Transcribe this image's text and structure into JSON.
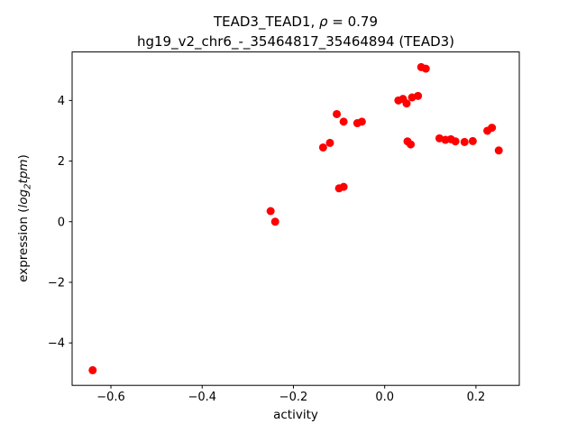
{
  "figure": {
    "background": "#ffffff",
    "title_line1_parts": {
      "prefix": "TEAD3_TEAD1, ",
      "rho": "ρ",
      "rest": " = 0.79"
    },
    "title_line2": "hg19_v2_chr6_-_35464817_35464894 (TEAD3)",
    "ylabel_parts": {
      "prefix": "expression (",
      "log": "log",
      "sub": "2",
      "word": "tpm",
      "suffix": ")"
    }
  },
  "chart_data": {
    "type": "scatter",
    "title": "TEAD3_TEAD1, ρ = 0.79\nhg19_v2_chr6_-_35464817_35464894 (TEAD3)",
    "xlabel": "activity",
    "ylabel": "expression (log₂tpm)",
    "xlim": [
      -0.685,
      0.295
    ],
    "ylim": [
      -5.4,
      5.6
    ],
    "xticks": [
      -0.6,
      -0.4,
      -0.2,
      0.0,
      0.2
    ],
    "xtick_labels": [
      "−0.6",
      "−0.4",
      "−0.2",
      "0.0",
      "0.2"
    ],
    "yticks": [
      -4,
      -2,
      0,
      2,
      4
    ],
    "ytick_labels": [
      "−4",
      "−2",
      "0",
      "2",
      "4"
    ],
    "grid": false,
    "legend": null,
    "marker_color": "#ff0000",
    "axis_color": "#000000",
    "points": [
      [
        -0.64,
        -4.9
      ],
      [
        -0.25,
        0.35
      ],
      [
        -0.24,
        0.0
      ],
      [
        -0.135,
        2.45
      ],
      [
        -0.12,
        2.6
      ],
      [
        -0.105,
        3.55
      ],
      [
        -0.09,
        3.3
      ],
      [
        -0.1,
        1.1
      ],
      [
        -0.09,
        1.15
      ],
      [
        -0.06,
        3.25
      ],
      [
        -0.05,
        3.3
      ],
      [
        0.03,
        4.0
      ],
      [
        0.04,
        4.05
      ],
      [
        0.048,
        3.9
      ],
      [
        0.05,
        2.65
      ],
      [
        0.057,
        2.55
      ],
      [
        0.06,
        4.1
      ],
      [
        0.073,
        4.15
      ],
      [
        0.08,
        5.1
      ],
      [
        0.09,
        5.05
      ],
      [
        0.12,
        2.75
      ],
      [
        0.133,
        2.7
      ],
      [
        0.145,
        2.72
      ],
      [
        0.155,
        2.65
      ],
      [
        0.175,
        2.63
      ],
      [
        0.193,
        2.66
      ],
      [
        0.225,
        3.0
      ],
      [
        0.235,
        3.1
      ],
      [
        0.25,
        2.35
      ]
    ]
  }
}
